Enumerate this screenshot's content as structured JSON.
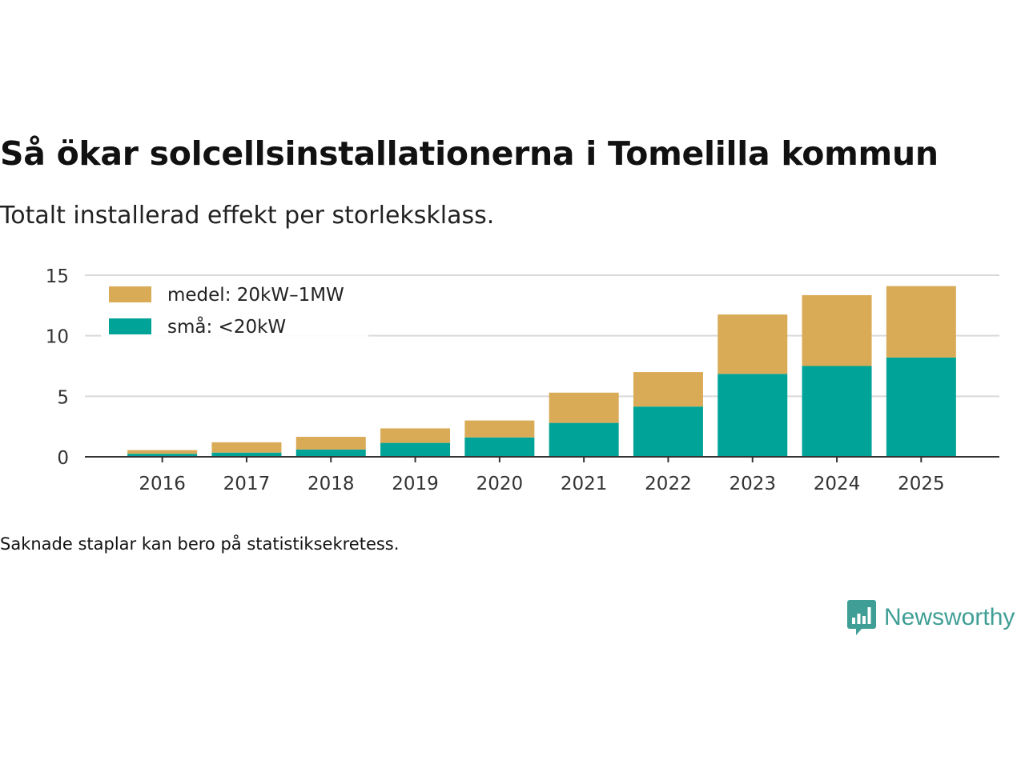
{
  "title": "Så ökar solcellsinstallationerna i Tomelilla kommun",
  "subtitle": "Totalt installerad effekt per storleksklass.",
  "footnote": "Saknade staplar kan bero på statistiksekretess.",
  "brand": {
    "name": "Newsworthy",
    "logo_icon": "bar-chart-speech-bubble-icon"
  },
  "colors": {
    "medel": "#d9ab57",
    "sma": "#00a398",
    "grid": "#d9d9d9",
    "axis": "#333333",
    "brand": "#3f9e95"
  },
  "chart_data": {
    "type": "bar",
    "stacked": true,
    "title": "Så ökar solcellsinstallationerna i Tomelilla kommun",
    "xlabel": "",
    "ylabel": "",
    "ylim": [
      0,
      15
    ],
    "yticks": [
      0,
      5,
      10,
      15
    ],
    "grid": true,
    "legend_position": "top-left",
    "categories": [
      "2016",
      "2017",
      "2018",
      "2019",
      "2020",
      "2021",
      "2022",
      "2023",
      "2024",
      "2025"
    ],
    "series": [
      {
        "name": "små: <20kW",
        "key": "sma",
        "values": [
          0.25,
          0.35,
          0.6,
          1.15,
          1.6,
          2.8,
          4.15,
          6.85,
          7.5,
          8.2
        ]
      },
      {
        "name": "medel: 20kW–1MW",
        "key": "medel",
        "values": [
          0.3,
          0.85,
          1.05,
          1.2,
          1.4,
          2.5,
          2.85,
          4.9,
          5.85,
          5.9
        ]
      }
    ],
    "legend": [
      {
        "label": "medel: 20kW–1MW",
        "key": "medel"
      },
      {
        "label": "små: <20kW",
        "key": "sma"
      }
    ]
  }
}
